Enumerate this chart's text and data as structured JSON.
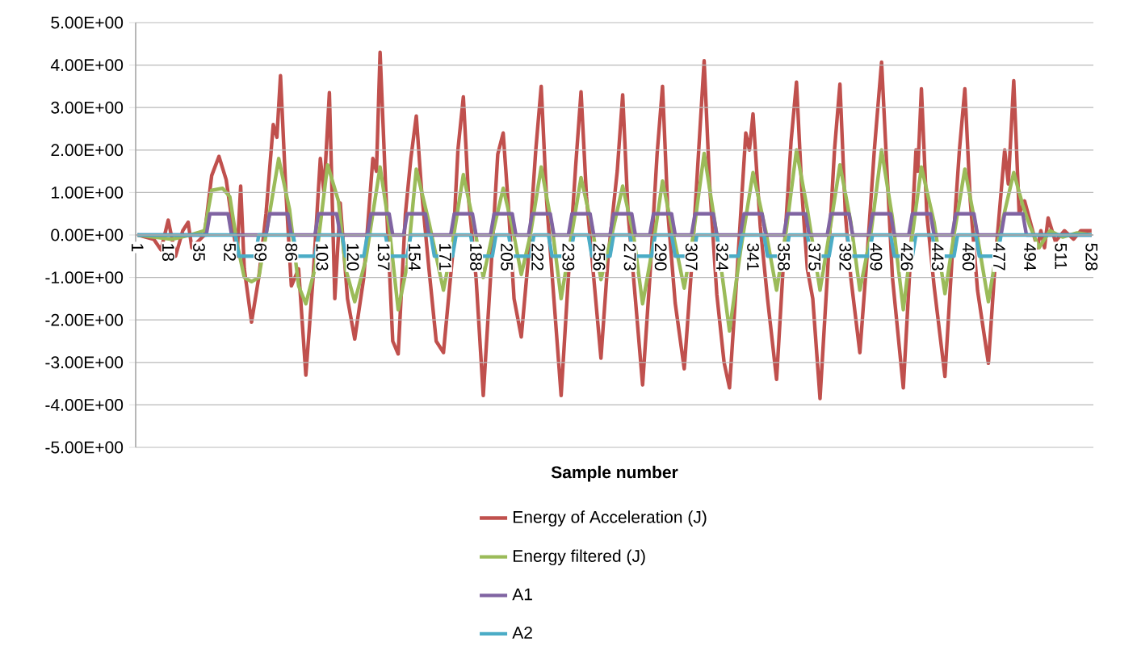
{
  "chart_data": {
    "type": "line",
    "xlabel": "Sample number",
    "xlim": [
      0,
      529
    ],
    "xticks": [
      1,
      18,
      35,
      52,
      69,
      86,
      103,
      120,
      137,
      154,
      171,
      188,
      205,
      222,
      239,
      256,
      273,
      290,
      307,
      324,
      341,
      358,
      375,
      392,
      409,
      426,
      443,
      460,
      477,
      494,
      511,
      528
    ],
    "ylim": [
      -5,
      5
    ],
    "yticks": [
      {
        "value": -5,
        "label": "-5.00E+00"
      },
      {
        "value": -4,
        "label": "-4.00E+00"
      },
      {
        "value": -3,
        "label": "-3.00E+00"
      },
      {
        "value": -2,
        "label": "-2.00E+00"
      },
      {
        "value": -1,
        "label": "-1.00E+00"
      },
      {
        "value": 0,
        "label": "0.00E+00"
      },
      {
        "value": 1,
        "label": "1.00E+00"
      },
      {
        "value": 2,
        "label": "2.00E+00"
      },
      {
        "value": 3,
        "label": "3.00E+00"
      },
      {
        "value": 4,
        "label": "4.00E+00"
      },
      {
        "value": 5,
        "label": "5.00E+00"
      }
    ],
    "grid": "y",
    "legend": "bottom",
    "line_style": "solid",
    "series": [
      {
        "name": "Energy of Acceleration (J)",
        "color": "#c0504d",
        "x": [
          1,
          10,
          14,
          18,
          22,
          26,
          29,
          31,
          38,
          42,
          46,
          50,
          56,
          58,
          60,
          64,
          68,
          72,
          76,
          78,
          80,
          83,
          86,
          90,
          94,
          98,
          102,
          104,
          107,
          110,
          113,
          117,
          121,
          126,
          131,
          133,
          135,
          138,
          142,
          145,
          149,
          152,
          155,
          158,
          162,
          166,
          170,
          175,
          178,
          181,
          184,
          188,
          192,
          196,
          200,
          203,
          206,
          209,
          213,
          217,
          221,
          224,
          227,
          231,
          235,
          239,
          243,
          246,
          249,
          253,
          257,
          261,
          266,
          269,
          272,
          276,
          280,
          284,
          288,
          291,
          294,
          298,
          303,
          307,
          311,
          314,
          317,
          321,
          325,
          328,
          332,
          337,
          339,
          341,
          345,
          349,
          354,
          358,
          362,
          365,
          368,
          371,
          374,
          378,
          382,
          386,
          389,
          392,
          395,
          400,
          404,
          408,
          412,
          415,
          418,
          424,
          428,
          431,
          432,
          434,
          437,
          441,
          447,
          451,
          455,
          458,
          461,
          465,
          471,
          475,
          480,
          482,
          485,
          488,
          491,
          498,
          500,
          502,
          504,
          508,
          513,
          518,
          522,
          528
        ],
        "values": [
          0,
          -0.1,
          -0.35,
          0.35,
          -0.5,
          0.1,
          0.3,
          -0.3,
          0,
          1.4,
          1.85,
          1.3,
          -0.5,
          1.15,
          -0.8,
          -2.05,
          -1.0,
          0.5,
          2.6,
          2.3,
          3.75,
          1.0,
          -1.2,
          -0.8,
          -3.3,
          -1.0,
          1.8,
          1.0,
          3.35,
          -1.5,
          0.75,
          -1.5,
          -2.45,
          -1.0,
          1.8,
          1.5,
          4.3,
          1.2,
          -2.5,
          -2.8,
          0.5,
          1.8,
          2.8,
          1.0,
          -0.8,
          -2.5,
          -2.77,
          -0.5,
          2.0,
          3.25,
          0.8,
          -1.0,
          -3.78,
          -1.0,
          1.9,
          2.4,
          0.6,
          -1.5,
          -2.4,
          -0.5,
          2.0,
          3.5,
          0.8,
          -1.5,
          -3.78,
          -1.0,
          1.6,
          3.37,
          0.9,
          -1.0,
          -2.9,
          -0.5,
          1.5,
          3.3,
          0.5,
          -1.5,
          -3.53,
          -1.0,
          1.9,
          3.5,
          0.5,
          -1.6,
          -3.15,
          -0.8,
          2.0,
          4.1,
          1.2,
          -1.4,
          -3.0,
          -3.6,
          -1.0,
          2.4,
          2.0,
          2.85,
          0.2,
          -1.5,
          -3.4,
          -0.5,
          2.2,
          3.6,
          1.0,
          -0.8,
          -1.5,
          -3.85,
          -1.0,
          2.0,
          3.55,
          0.5,
          -1.0,
          -2.77,
          -0.5,
          2.0,
          4.07,
          1.5,
          -1.0,
          -3.6,
          -0.5,
          2.0,
          1.5,
          3.44,
          0.5,
          -1.2,
          -3.33,
          -0.5,
          2.0,
          3.44,
          0.8,
          -1.3,
          -3.02,
          -0.5,
          2.0,
          1.2,
          3.63,
          0.5,
          0.8,
          -0.3,
          0.1,
          -0.3,
          0.4,
          -0.15,
          0.1,
          -0.1,
          0.1,
          0.1
        ]
      },
      {
        "name": "Energy filtered (J)",
        "color": "#9bbb59",
        "x": [
          1,
          20,
          30,
          38,
          42,
          48,
          52,
          56,
          60,
          64,
          68,
          72,
          79,
          85,
          90,
          94,
          99,
          106,
          112,
          116,
          121,
          127,
          135,
          140,
          145,
          150,
          155,
          162,
          170,
          175,
          181,
          187,
          192,
          197,
          203,
          208,
          213,
          218,
          224,
          230,
          235,
          240,
          246,
          252,
          257,
          263,
          269,
          275,
          280,
          286,
          291,
          297,
          303,
          308,
          314,
          321,
          328,
          334,
          341,
          348,
          354,
          359,
          365,
          371,
          378,
          383,
          389,
          395,
          400,
          406,
          412,
          418,
          424,
          429,
          434,
          441,
          447,
          452,
          458,
          464,
          471,
          477,
          485,
          490,
          494,
          499,
          505,
          512,
          520,
          528
        ],
        "values": [
          0,
          -0.1,
          0,
          0.1,
          1.05,
          1.1,
          0.9,
          -0.2,
          -1.0,
          -1.1,
          -1.0,
          0,
          1.8,
          0.6,
          -1.2,
          -1.62,
          -0.8,
          1.65,
          0.8,
          -0.8,
          -1.57,
          -0.6,
          1.6,
          0.2,
          -1.76,
          -0.7,
          1.55,
          0.3,
          -1.3,
          -0.2,
          1.42,
          0.2,
          -1.0,
          0,
          1.1,
          0.2,
          -0.93,
          0,
          1.6,
          0.2,
          -1.5,
          -0.2,
          1.35,
          0.2,
          -1.05,
          0,
          1.15,
          0,
          -1.62,
          -0.2,
          1.27,
          0,
          -1.25,
          0,
          1.92,
          0,
          -2.26,
          -0.4,
          1.47,
          0.1,
          -1.3,
          0,
          2.0,
          0.6,
          -1.3,
          0,
          1.65,
          0.3,
          -1.3,
          0,
          2.0,
          0.4,
          -1.76,
          0,
          1.6,
          0.3,
          -1.38,
          0,
          1.55,
          0.2,
          -1.57,
          0,
          1.47,
          0.7,
          0.2,
          -0.3,
          0.1,
          -0.05,
          0.05,
          0
        ]
      },
      {
        "name": "A1",
        "color": "#8064a2",
        "x": [
          1,
          39,
          41,
          51,
          53,
          72,
          74,
          84,
          86,
          99,
          101,
          111,
          113,
          128,
          130,
          140,
          142,
          148,
          150,
          160,
          162,
          174,
          176,
          186,
          188,
          196,
          198,
          208,
          210,
          217,
          219,
          229,
          231,
          239,
          241,
          251,
          253,
          262,
          264,
          274,
          276,
          284,
          286,
          296,
          298,
          307,
          309,
          319,
          321,
          334,
          336,
          346,
          348,
          358,
          360,
          370,
          372,
          382,
          384,
          394,
          396,
          405,
          407,
          417,
          419,
          427,
          429,
          439,
          441,
          451,
          453,
          463,
          465,
          478,
          480,
          490,
          492,
          528
        ],
        "values": [
          0,
          0,
          0.5,
          0.5,
          0,
          0,
          0.5,
          0.5,
          0,
          0,
          0.5,
          0.5,
          0,
          0,
          0.5,
          0.5,
          0,
          0,
          0.5,
          0.5,
          0,
          0,
          0.5,
          0.5,
          0,
          0,
          0.5,
          0.5,
          0,
          0,
          0.5,
          0.5,
          0,
          0,
          0.5,
          0.5,
          0,
          0,
          0.5,
          0.5,
          0,
          0,
          0.5,
          0.5,
          0,
          0,
          0.5,
          0.5,
          0,
          0,
          0.5,
          0.5,
          0,
          0,
          0.5,
          0.5,
          0,
          0,
          0.5,
          0.5,
          0,
          0,
          0.5,
          0.5,
          0,
          0,
          0.5,
          0.5,
          0,
          0,
          0.5,
          0.5,
          0,
          0,
          0.5,
          0.5,
          0,
          0
        ]
      },
      {
        "name": "A2",
        "color": "#4bacc6",
        "x": [
          1,
          55,
          57,
          66,
          68,
          87,
          89,
          99,
          101,
          114,
          116,
          126,
          128,
          138,
          140,
          150,
          152,
          163,
          165,
          175,
          177,
          185,
          187,
          197,
          199,
          206,
          208,
          218,
          220,
          228,
          230,
          240,
          242,
          250,
          252,
          262,
          264,
          273,
          275,
          285,
          287,
          296,
          298,
          308,
          310,
          321,
          323,
          333,
          335,
          347,
          349,
          359,
          361,
          371,
          373,
          383,
          385,
          393,
          395,
          405,
          407,
          417,
          419,
          429,
          431,
          440,
          442,
          452,
          454,
          464,
          466,
          476,
          478,
          528
        ],
        "values": [
          0,
          0,
          -0.5,
          -0.5,
          0,
          0,
          -0.5,
          -0.5,
          0,
          0,
          -0.5,
          -0.5,
          0,
          0,
          -0.5,
          -0.5,
          0,
          0,
          -0.5,
          -0.5,
          0,
          0,
          -0.5,
          -0.5,
          0,
          0,
          -0.5,
          -0.5,
          0,
          0,
          -0.5,
          -0.5,
          0,
          0,
          -0.5,
          -0.5,
          0,
          0,
          -0.5,
          -0.5,
          0,
          0,
          -0.5,
          -0.5,
          0,
          0,
          -0.5,
          -0.5,
          0,
          0,
          -0.5,
          -0.5,
          0,
          0,
          -0.5,
          -0.5,
          0,
          0,
          -0.5,
          -0.5,
          0,
          0,
          -0.5,
          -0.5,
          0,
          0,
          -0.5,
          -0.5,
          0,
          0,
          -0.5,
          -0.5,
          0,
          0
        ]
      }
    ]
  }
}
